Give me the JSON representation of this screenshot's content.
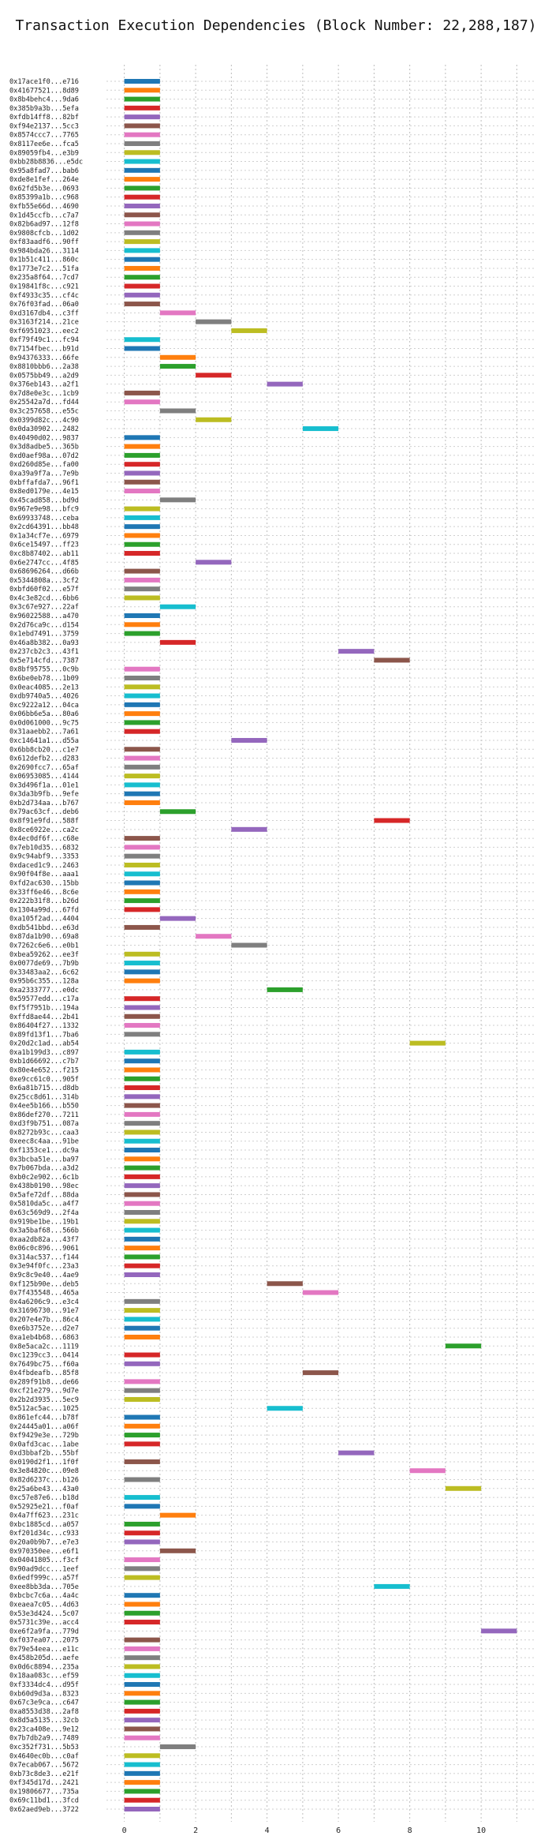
{
  "chart_data": {
    "type": "bar",
    "orientation": "horizontal",
    "title": "Transaction Execution Dependencies (Block Number: 22,288,187)",
    "xlabel": "",
    "ylabel": "",
    "xlim": [
      -0.5,
      11.5
    ],
    "xticks": [
      0,
      2,
      4,
      6,
      8,
      10
    ],
    "grid": true,
    "palette": [
      "#1f77b4",
      "#ff7f0e",
      "#2ca02c",
      "#d62728",
      "#9467bd",
      "#8c564b",
      "#e377c2",
      "#7f7f7f",
      "#bcbd22",
      "#17becf"
    ],
    "transactions": [
      {
        "label": "0x17ace1f0...e716",
        "start": 0
      },
      {
        "label": "0x41677521...8d89",
        "start": 0
      },
      {
        "label": "0x8b4behc4...9da6",
        "start": 0
      },
      {
        "label": "0x385b9a3b...5efa",
        "start": 0
      },
      {
        "label": "0xfdb14ff8...82bf",
        "start": 0
      },
      {
        "label": "0xf94e2137...5cc3",
        "start": 0
      },
      {
        "label": "0x8574ccc7...7765",
        "start": 0
      },
      {
        "label": "0x8117ee6e...fca5",
        "start": 0
      },
      {
        "label": "0x89059fb4...e3b9",
        "start": 0
      },
      {
        "label": "0xbb28b8836...e5dc",
        "start": 0
      },
      {
        "label": "0x95a8fad7...bab6",
        "start": 0
      },
      {
        "label": "0xde8e1fef...264e",
        "start": 0
      },
      {
        "label": "0x62fd5b3e...0693",
        "start": 0
      },
      {
        "label": "0x85399a1b...c968",
        "start": 0
      },
      {
        "label": "0xfb55e66d...4690",
        "start": 0
      },
      {
        "label": "0x1d45ccfb...c7a7",
        "start": 0
      },
      {
        "label": "0x82b6ad97...12f8",
        "start": 0
      },
      {
        "label": "0x9808cfcb...1d02",
        "start": 0
      },
      {
        "label": "0xf83aadf6...90ff",
        "start": 0
      },
      {
        "label": "0x984bda26...3114",
        "start": 0
      },
      {
        "label": "0x1b51c411...860c",
        "start": 0
      },
      {
        "label": "0x1773e7c2...51fa",
        "start": 0
      },
      {
        "label": "0x235a8f64...7cd7",
        "start": 0
      },
      {
        "label": "0x19841f8c...c921",
        "start": 0
      },
      {
        "label": "0xf4933c35...cf4c",
        "start": 0
      },
      {
        "label": "0x76f03fad...06a0",
        "start": 0
      },
      {
        "label": "0xd3167db4...c3ff",
        "start": 1
      },
      {
        "label": "0x3163f214...21ce",
        "start": 2
      },
      {
        "label": "0xf6951023...eec2",
        "start": 3
      },
      {
        "label": "0xf79f49c1...fc94",
        "start": 0
      },
      {
        "label": "0x7154fbec...b91d",
        "start": 0
      },
      {
        "label": "0x94376333...66fe",
        "start": 1
      },
      {
        "label": "0x8810bbb6...2a38",
        "start": 1
      },
      {
        "label": "0x0575bb49...a2d9",
        "start": 2
      },
      {
        "label": "0x376eb143...a2f1",
        "start": 4
      },
      {
        "label": "0x7d8e0e3c...1cb9",
        "start": 0
      },
      {
        "label": "0x25542a7d...fd44",
        "start": 0
      },
      {
        "label": "0x3c257658...e55c",
        "start": 1
      },
      {
        "label": "0x0399d82c...4c90",
        "start": 2
      },
      {
        "label": "0x0da30902...2482",
        "start": 5
      },
      {
        "label": "0x40490d02...9837",
        "start": 0
      },
      {
        "label": "0x3d8adbe5...365b",
        "start": 0
      },
      {
        "label": "0xd0aef98a...07d2",
        "start": 0
      },
      {
        "label": "0xd260d85e...fa00",
        "start": 0
      },
      {
        "label": "0xa39a9f7a...7e9b",
        "start": 0
      },
      {
        "label": "0xbffafda7...96f1",
        "start": 0
      },
      {
        "label": "0x8ed0179e...4e15",
        "start": 0
      },
      {
        "label": "0x45cad858...bd9d",
        "start": 1
      },
      {
        "label": "0x967e9e98...bfc9",
        "start": 0
      },
      {
        "label": "0x69933748...ceba",
        "start": 0
      },
      {
        "label": "0x2cd64391...bb48",
        "start": 0
      },
      {
        "label": "0x1a34cf7e...6979",
        "start": 0
      },
      {
        "label": "0x6ce15497...ff23",
        "start": 0
      },
      {
        "label": "0xc8b87402...ab11",
        "start": 0
      },
      {
        "label": "0x6e2747cc...4f85",
        "start": 2
      },
      {
        "label": "0x68696264...d66b",
        "start": 0
      },
      {
        "label": "0x5344808a...3cf2",
        "start": 0
      },
      {
        "label": "0xbfd60f02...e57f",
        "start": 0
      },
      {
        "label": "0x4c3e82cd...6bb6",
        "start": 0
      },
      {
        "label": "0x3c67e927...22af",
        "start": 1
      },
      {
        "label": "0x96022588...a470",
        "start": 0
      },
      {
        "label": "0x2d76ca9c...d154",
        "start": 0
      },
      {
        "label": "0x1ebd7491...3759",
        "start": 0
      },
      {
        "label": "0x46a8b382...0a93",
        "start": 1
      },
      {
        "label": "0x237cb2c3...43f1",
        "start": 6
      },
      {
        "label": "0x5e714cfd...7387",
        "start": 7
      },
      {
        "label": "0x8bf95755...0c9b",
        "start": 0
      },
      {
        "label": "0x6be0eb78...1b09",
        "start": 0
      },
      {
        "label": "0x0eac4085...2e13",
        "start": 0
      },
      {
        "label": "0xdb9740a5...4026",
        "start": 0
      },
      {
        "label": "0xc9222a12...04ca",
        "start": 0
      },
      {
        "label": "0x06bb6e5a...80a6",
        "start": 0
      },
      {
        "label": "0x0d061000...9c75",
        "start": 0
      },
      {
        "label": "0x31aaebb2...7a61",
        "start": 0
      },
      {
        "label": "0xc14641a1...d55a",
        "start": 3
      },
      {
        "label": "0x6bb8cb20...c1e7",
        "start": 0
      },
      {
        "label": "0x612defb2...d283",
        "start": 0
      },
      {
        "label": "0x2690fcc7...65af",
        "start": 0
      },
      {
        "label": "0x06953085...4144",
        "start": 0
      },
      {
        "label": "0x3d496f1a...01e1",
        "start": 0
      },
      {
        "label": "0x3da3b9fb...9efe",
        "start": 0
      },
      {
        "label": "0xb2d734aa...b767",
        "start": 0
      },
      {
        "label": "0x79ac63cf...deb6",
        "start": 1
      },
      {
        "label": "0x8f91e9fd...588f",
        "start": 7
      },
      {
        "label": "0x8ce6922e...ca2c",
        "start": 3
      },
      {
        "label": "0x4ec0df6f...c68e",
        "start": 0
      },
      {
        "label": "0x7eb10d35...6832",
        "start": 0
      },
      {
        "label": "0x9c94abf9...3353",
        "start": 0
      },
      {
        "label": "0xdaced1c9...2463",
        "start": 0
      },
      {
        "label": "0x90f04f8e...aaa1",
        "start": 0
      },
      {
        "label": "0xfd2ac630...15bb",
        "start": 0
      },
      {
        "label": "0x33ff6e46...8c6e",
        "start": 0
      },
      {
        "label": "0x222b31f8...b26d",
        "start": 0
      },
      {
        "label": "0x1304a99d...67fd",
        "start": 0
      },
      {
        "label": "0xa105f2ad...4404",
        "start": 1
      },
      {
        "label": "0xdb541bbd...e63d",
        "start": 0
      },
      {
        "label": "0x87da1b90...69a8",
        "start": 2
      },
      {
        "label": "0x7262c6e6...e0b1",
        "start": 3
      },
      {
        "label": "0xbea59262...ee3f",
        "start": 0
      },
      {
        "label": "0x0077de69...7b9b",
        "start": 0
      },
      {
        "label": "0x33483aa2...6c62",
        "start": 0
      },
      {
        "label": "0x95b6c355...128a",
        "start": 0
      },
      {
        "label": "0xa2333777...e0dc",
        "start": 4
      },
      {
        "label": "0x59577edd...c17a",
        "start": 0
      },
      {
        "label": "0xf5f7951b...194a",
        "start": 0
      },
      {
        "label": "0xffd8ae44...2b41",
        "start": 0
      },
      {
        "label": "0x86404f27...1332",
        "start": 0
      },
      {
        "label": "0x89fd13f1...7ba6",
        "start": 0
      },
      {
        "label": "0x20d2c1ad...ab54",
        "start": 8
      },
      {
        "label": "0xa1b199d3...c897",
        "start": 0
      },
      {
        "label": "0xb1d66692...c7b7",
        "start": 0
      },
      {
        "label": "0x80e4e652...f215",
        "start": 0
      },
      {
        "label": "0xe9cc61c0...905f",
        "start": 0
      },
      {
        "label": "0x6a81b715...d8db",
        "start": 0
      },
      {
        "label": "0x25cc8d61...314b",
        "start": 0
      },
      {
        "label": "0x4ee5b166...b550",
        "start": 0
      },
      {
        "label": "0x86def270...7211",
        "start": 0
      },
      {
        "label": "0xd3f9b751...087a",
        "start": 0
      },
      {
        "label": "0x8272b93c...caa3",
        "start": 0
      },
      {
        "label": "0xeec8c4aa...91be",
        "start": 0
      },
      {
        "label": "0xf1353ce1...dc9a",
        "start": 0
      },
      {
        "label": "0x3bcba51e...ba97",
        "start": 0
      },
      {
        "label": "0x7b067bda...a3d2",
        "start": 0
      },
      {
        "label": "0xb0c2e902...6c1b",
        "start": 0
      },
      {
        "label": "0x438b0190...98ec",
        "start": 0
      },
      {
        "label": "0x5afe72df...88da",
        "start": 0
      },
      {
        "label": "0x5810da5c...a4f7",
        "start": 0
      },
      {
        "label": "0x63c569d9...2f4a",
        "start": 0
      },
      {
        "label": "0x919be1be...19b1",
        "start": 0
      },
      {
        "label": "0x3a5baf68...566b",
        "start": 0
      },
      {
        "label": "0xaa2db82a...43f7",
        "start": 0
      },
      {
        "label": "0x06c0c896...9061",
        "start": 0
      },
      {
        "label": "0x314ac537...f144",
        "start": 0
      },
      {
        "label": "0x3e94f0fc...23a3",
        "start": 0
      },
      {
        "label": "0x9c8c9e40...4ae9",
        "start": 0
      },
      {
        "label": "0xf125b90e...deb5",
        "start": 4
      },
      {
        "label": "0x7f435548...465a",
        "start": 5
      },
      {
        "label": "0x4a6206c9...e3c4",
        "start": 0
      },
      {
        "label": "0x31696730...91e7",
        "start": 0
      },
      {
        "label": "0x207e4e7b...86c4",
        "start": 0
      },
      {
        "label": "0xe6b3752e...d2e7",
        "start": 0
      },
      {
        "label": "0xa1eb4b68...6863",
        "start": 0
      },
      {
        "label": "0x8e5aca2c...1119",
        "start": 9
      },
      {
        "label": "0xc1239cc3...0414",
        "start": 0
      },
      {
        "label": "0x7649bc75...f60a",
        "start": 0
      },
      {
        "label": "0x4fbdeafb...85f8",
        "start": 5
      },
      {
        "label": "0x289f91b8...de66",
        "start": 0
      },
      {
        "label": "0xcf21e279...9d7e",
        "start": 0
      },
      {
        "label": "0x2b2d3935...5ec9",
        "start": 0
      },
      {
        "label": "0x512ac5ac...1025",
        "start": 4
      },
      {
        "label": "0x861efc44...b78f",
        "start": 0
      },
      {
        "label": "0x24445a01...a06f",
        "start": 0
      },
      {
        "label": "0xf9429e3e...729b",
        "start": 0
      },
      {
        "label": "0x0afd3cac...1abe",
        "start": 0
      },
      {
        "label": "0xd3bbaf2b...55bf",
        "start": 6
      },
      {
        "label": "0x0190d2f1...1f0f",
        "start": 0
      },
      {
        "label": "0x3e84820c...09e8",
        "start": 8
      },
      {
        "label": "0x82d6237c...b126",
        "start": 0
      },
      {
        "label": "0x25a6be43...43a0",
        "start": 9
      },
      {
        "label": "0xc57e87e6...b18d",
        "start": 0
      },
      {
        "label": "0x52925e21...f0af",
        "start": 0
      },
      {
        "label": "0x4a7ff623...231c",
        "start": 1
      },
      {
        "label": "0xbc1885cd...a057",
        "start": 0
      },
      {
        "label": "0xf201d34c...c933",
        "start": 0
      },
      {
        "label": "0x20a0b9b7...e7e3",
        "start": 0
      },
      {
        "label": "0x970350ee...e6f1",
        "start": 1
      },
      {
        "label": "0x04041805...f3cf",
        "start": 0
      },
      {
        "label": "0x90ad9dcc...1eef",
        "start": 0
      },
      {
        "label": "0x6edf999c...a57f",
        "start": 0
      },
      {
        "label": "0xee8bb3da...705e",
        "start": 7
      },
      {
        "label": "0xbcbc7c6a...4a4c",
        "start": 0
      },
      {
        "label": "0xeaea7c05...4d63",
        "start": 0
      },
      {
        "label": "0x53e3d424...5c07",
        "start": 0
      },
      {
        "label": "0x5731c39e...acc4",
        "start": 0
      },
      {
        "label": "0xe6f2a9fa...779d",
        "start": 10
      },
      {
        "label": "0xf037ea07...2075",
        "start": 0
      },
      {
        "label": "0x79e54eea...e11c",
        "start": 0
      },
      {
        "label": "0x458b205d...aefe",
        "start": 0
      },
      {
        "label": "0x0d6c8894...235a",
        "start": 0
      },
      {
        "label": "0x18aa083c...ef59",
        "start": 0
      },
      {
        "label": "0xf3334dc4...d95f",
        "start": 0
      },
      {
        "label": "0xb60d9d3a...8323",
        "start": 0
      },
      {
        "label": "0x67c3e9ca...c647",
        "start": 0
      },
      {
        "label": "0xa8553d38...2af8",
        "start": 0
      },
      {
        "label": "0x8d5a5135...32cb",
        "start": 0
      },
      {
        "label": "0x23ca408e...9e12",
        "start": 0
      },
      {
        "label": "0x7b7db2a9...7489",
        "start": 0
      },
      {
        "label": "0xc352f731...5b53",
        "start": 1
      },
      {
        "label": "0x4640ec0b...c0af",
        "start": 0
      },
      {
        "label": "0x7ecab067...5672",
        "start": 0
      },
      {
        "label": "0xb73c8de3...e21f",
        "start": 0
      },
      {
        "label": "0xf345d17d...2421",
        "start": 0
      },
      {
        "label": "0x19806677...735a",
        "start": 0
      },
      {
        "label": "0x69c11bd1...3fcd",
        "start": 0
      },
      {
        "label": "0x62aed9eb...3722",
        "start": 0
      }
    ]
  }
}
